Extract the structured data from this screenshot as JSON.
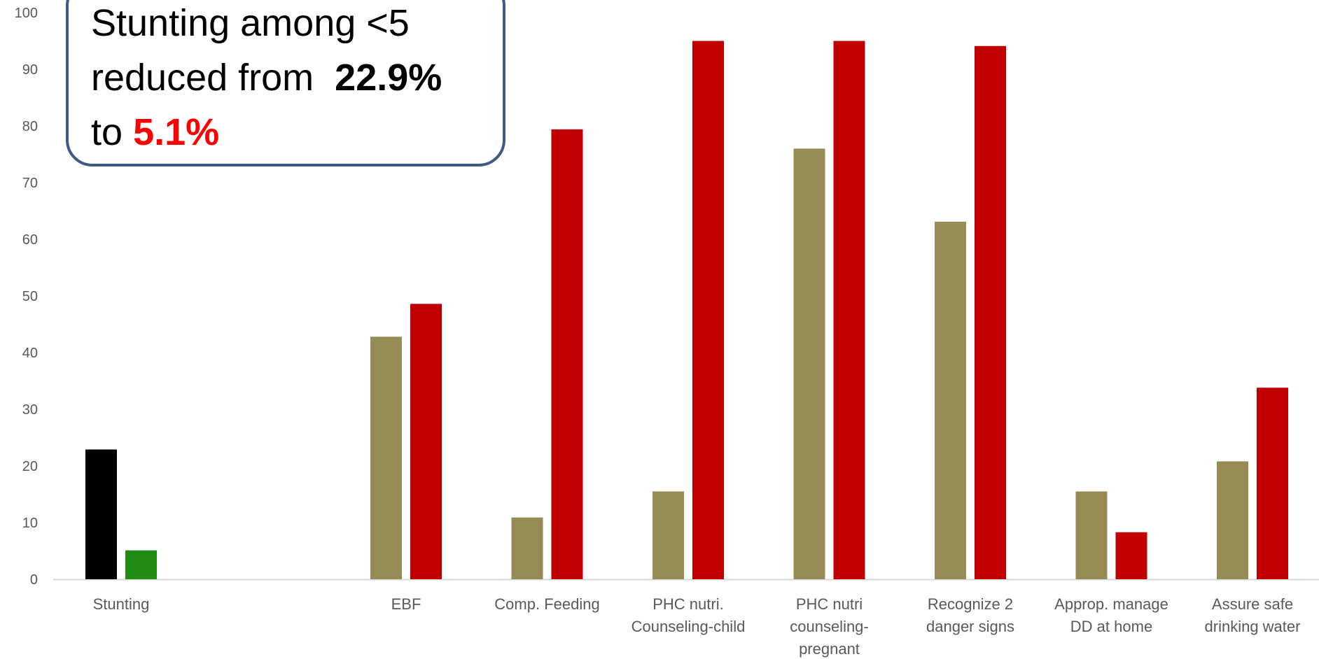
{
  "callout": {
    "line1": "Stunting among <5",
    "line2_prefix": "reduced from",
    "line2_value": "22.9%",
    "line3_prefix": "to",
    "line3_value": "5.1%"
  },
  "chart_data": {
    "type": "bar",
    "title": "",
    "xlabel": "",
    "ylabel": "",
    "ylim": [
      0,
      100
    ],
    "yticks": [
      0,
      10,
      20,
      30,
      40,
      50,
      60,
      70,
      80,
      90,
      100
    ],
    "grid": false,
    "legend": "none",
    "categories": [
      [
        "Stunting"
      ],
      [
        "EBF"
      ],
      [
        "Comp. Feeding"
      ],
      [
        "PHC nutri.",
        "Counseling-child"
      ],
      [
        "PHC nutri",
        "counseling-",
        "pregnant"
      ],
      [
        "Recognize 2",
        "danger signs"
      ],
      [
        "Approp. manage",
        "DD at home"
      ],
      [
        "Assure safe",
        "drinking water"
      ]
    ],
    "series": [
      {
        "values": [
          22.9,
          42.8,
          10.9,
          15.5,
          76.0,
          63.1,
          15.5,
          20.8
        ]
      },
      {
        "values": [
          5.1,
          48.6,
          79.4,
          95.0,
          95.0,
          94.1,
          8.3,
          33.8
        ]
      }
    ],
    "colors": {
      "series1": "#968b54",
      "series2": "#c00000",
      "stunting_baseline": "#000000",
      "stunting_endline": "#228b13",
      "axis": "#d9d9d9"
    }
  }
}
